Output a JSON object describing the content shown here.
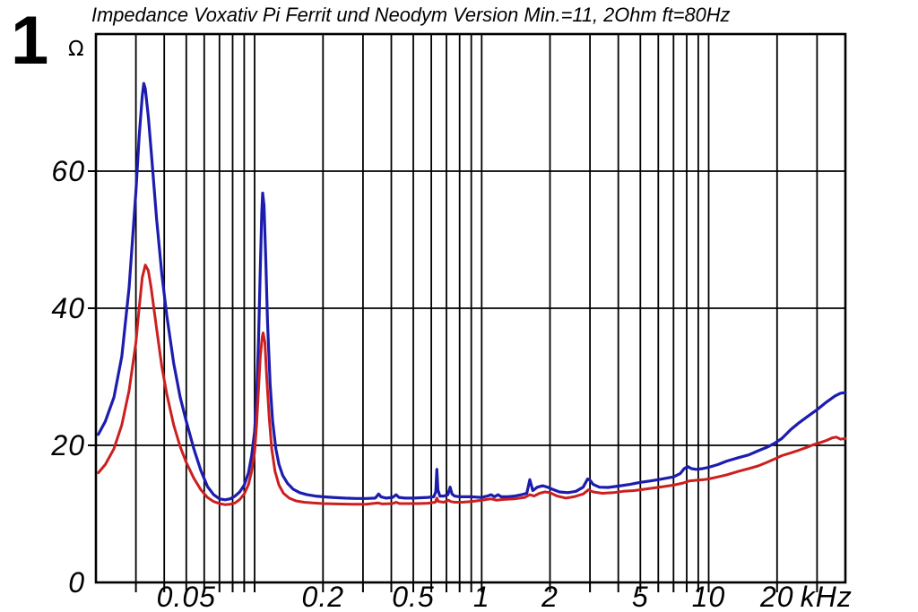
{
  "figure_number": "1",
  "chart_data": {
    "type": "line",
    "title": "Impedance Voxativ Pi Ferrit und Neodym Version Min.=11, 2Ohm ft=80Hz",
    "y_unit": "Ω",
    "x_unit": "kHz",
    "x_scale": "log",
    "x_range_khz": [
      0.02,
      40
    ],
    "y_range_ohm": [
      0,
      80
    ],
    "grid": true,
    "legend": "none",
    "x_gridlines_khz": [
      0.03,
      0.04,
      0.05,
      0.06,
      0.07,
      0.08,
      0.09,
      0.1,
      0.2,
      0.3,
      0.4,
      0.5,
      0.6,
      0.7,
      0.8,
      0.9,
      1,
      2,
      3,
      4,
      5,
      6,
      7,
      8,
      9,
      10,
      20,
      30
    ],
    "y_gridlines_ohm": [
      20,
      40,
      60
    ],
    "x_tick_labels": [
      {
        "value": 0.05,
        "label": "0.05"
      },
      {
        "value": 0.2,
        "label": "0.2"
      },
      {
        "value": 0.5,
        "label": "0.5"
      },
      {
        "value": 1,
        "label": "1"
      },
      {
        "value": 2,
        "label": "2"
      },
      {
        "value": 5,
        "label": "5"
      },
      {
        "value": 10,
        "label": "10"
      },
      {
        "value": 20,
        "label": "20"
      }
    ],
    "y_tick_labels": [
      {
        "value": 0,
        "label": "0"
      },
      {
        "value": 20,
        "label": "20"
      },
      {
        "value": 40,
        "label": "40"
      },
      {
        "value": 60,
        "label": "60"
      }
    ],
    "series": [
      {
        "name": "blue",
        "color": "#1c1cae",
        "width": 3.2,
        "points": [
          [
            0.0205,
            21.6
          ],
          [
            0.022,
            23.5
          ],
          [
            0.024,
            27
          ],
          [
            0.026,
            33
          ],
          [
            0.028,
            43
          ],
          [
            0.03,
            57
          ],
          [
            0.031,
            65
          ],
          [
            0.032,
            71
          ],
          [
            0.0325,
            72.8
          ],
          [
            0.033,
            72
          ],
          [
            0.034,
            68
          ],
          [
            0.035,
            63
          ],
          [
            0.037,
            53
          ],
          [
            0.039,
            45
          ],
          [
            0.041,
            39
          ],
          [
            0.044,
            32
          ],
          [
            0.047,
            27
          ],
          [
            0.05,
            23.5
          ],
          [
            0.054,
            19.5
          ],
          [
            0.058,
            16.3
          ],
          [
            0.062,
            14.0
          ],
          [
            0.066,
            12.8
          ],
          [
            0.07,
            12.2
          ],
          [
            0.074,
            12.05
          ],
          [
            0.078,
            12.2
          ],
          [
            0.082,
            12.6
          ],
          [
            0.086,
            13.2
          ],
          [
            0.09,
            14.2
          ],
          [
            0.094,
            16.0
          ],
          [
            0.097,
            18.5
          ],
          [
            0.1,
            22
          ],
          [
            0.102,
            27
          ],
          [
            0.104,
            35
          ],
          [
            0.106,
            46
          ],
          [
            0.1075,
            54
          ],
          [
            0.1085,
            56.8
          ],
          [
            0.11,
            55
          ],
          [
            0.112,
            47
          ],
          [
            0.114,
            38
          ],
          [
            0.117,
            29
          ],
          [
            0.12,
            23.5
          ],
          [
            0.124,
            19.5
          ],
          [
            0.128,
            17.2
          ],
          [
            0.133,
            15.6
          ],
          [
            0.14,
            14.4
          ],
          [
            0.148,
            13.6
          ],
          [
            0.158,
            13.1
          ],
          [
            0.17,
            12.8
          ],
          [
            0.185,
            12.6
          ],
          [
            0.2,
            12.5
          ],
          [
            0.22,
            12.4
          ],
          [
            0.25,
            12.3
          ],
          [
            0.28,
            12.25
          ],
          [
            0.31,
            12.25
          ],
          [
            0.34,
            12.3
          ],
          [
            0.352,
            12.9
          ],
          [
            0.36,
            12.5
          ],
          [
            0.38,
            12.3
          ],
          [
            0.405,
            12.4
          ],
          [
            0.42,
            12.8
          ],
          [
            0.432,
            12.4
          ],
          [
            0.46,
            12.3
          ],
          [
            0.5,
            12.3
          ],
          [
            0.54,
            12.35
          ],
          [
            0.58,
            12.4
          ],
          [
            0.615,
            12.5
          ],
          [
            0.628,
            13.2
          ],
          [
            0.635,
            16.5
          ],
          [
            0.642,
            13.5
          ],
          [
            0.655,
            12.6
          ],
          [
            0.68,
            12.6
          ],
          [
            0.71,
            12.8
          ],
          [
            0.726,
            13.9
          ],
          [
            0.74,
            12.9
          ],
          [
            0.76,
            12.6
          ],
          [
            0.8,
            12.5
          ],
          [
            0.85,
            12.5
          ],
          [
            0.9,
            12.5
          ],
          [
            0.95,
            12.45
          ],
          [
            1.0,
            12.4
          ],
          [
            1.06,
            12.6
          ],
          [
            1.1,
            12.8
          ],
          [
            1.14,
            12.5
          ],
          [
            1.18,
            12.8
          ],
          [
            1.22,
            12.5
          ],
          [
            1.3,
            12.5
          ],
          [
            1.4,
            12.6
          ],
          [
            1.5,
            12.8
          ],
          [
            1.58,
            13.0
          ],
          [
            1.63,
            15.0
          ],
          [
            1.68,
            13.4
          ],
          [
            1.76,
            13.9
          ],
          [
            1.86,
            14.1
          ],
          [
            1.95,
            13.9
          ],
          [
            2.05,
            13.6
          ],
          [
            2.2,
            13.2
          ],
          [
            2.4,
            13.1
          ],
          [
            2.6,
            13.3
          ],
          [
            2.8,
            13.9
          ],
          [
            2.93,
            15.1
          ],
          [
            3.0,
            14.9
          ],
          [
            3.1,
            14.3
          ],
          [
            3.3,
            13.9
          ],
          [
            3.6,
            13.85
          ],
          [
            4.0,
            14.05
          ],
          [
            4.5,
            14.3
          ],
          [
            5.0,
            14.6
          ],
          [
            5.5,
            14.8
          ],
          [
            6.0,
            15.0
          ],
          [
            6.5,
            15.2
          ],
          [
            7.0,
            15.4
          ],
          [
            7.5,
            15.9
          ],
          [
            7.8,
            16.6
          ],
          [
            8.1,
            16.9
          ],
          [
            8.4,
            16.6
          ],
          [
            8.8,
            16.5
          ],
          [
            9.4,
            16.6
          ],
          [
            10.0,
            16.8
          ],
          [
            11.0,
            17.2
          ],
          [
            12.0,
            17.7
          ],
          [
            13.5,
            18.2
          ],
          [
            15.0,
            18.6
          ],
          [
            16.5,
            19.2
          ],
          [
            18.0,
            19.7
          ],
          [
            19.5,
            20.3
          ],
          [
            21.0,
            21.0
          ],
          [
            23.0,
            22.3
          ],
          [
            25.0,
            23.3
          ],
          [
            27.0,
            24.1
          ],
          [
            30.0,
            25.2
          ],
          [
            33.0,
            26.3
          ],
          [
            36.0,
            27.2
          ],
          [
            38.0,
            27.6
          ],
          [
            40.0,
            27.7
          ]
        ]
      },
      {
        "name": "red",
        "color": "#cc1f1f",
        "width": 3.0,
        "points": [
          [
            0.0205,
            16.0
          ],
          [
            0.022,
            17.2
          ],
          [
            0.024,
            19.5
          ],
          [
            0.026,
            23
          ],
          [
            0.028,
            28
          ],
          [
            0.03,
            35
          ],
          [
            0.031,
            40
          ],
          [
            0.032,
            44.5
          ],
          [
            0.033,
            46.3
          ],
          [
            0.034,
            45.5
          ],
          [
            0.035,
            43
          ],
          [
            0.037,
            37
          ],
          [
            0.039,
            31.5
          ],
          [
            0.041,
            27.5
          ],
          [
            0.044,
            23
          ],
          [
            0.047,
            19.8
          ],
          [
            0.05,
            17.5
          ],
          [
            0.054,
            15.2
          ],
          [
            0.058,
            13.5
          ],
          [
            0.062,
            12.4
          ],
          [
            0.066,
            11.8
          ],
          [
            0.07,
            11.5
          ],
          [
            0.074,
            11.35
          ],
          [
            0.078,
            11.4
          ],
          [
            0.082,
            11.6
          ],
          [
            0.086,
            12.1
          ],
          [
            0.09,
            12.9
          ],
          [
            0.094,
            14.3
          ],
          [
            0.097,
            16.2
          ],
          [
            0.1,
            19
          ],
          [
            0.102,
            23
          ],
          [
            0.104,
            28
          ],
          [
            0.106,
            33
          ],
          [
            0.108,
            35.8
          ],
          [
            0.109,
            36.4
          ],
          [
            0.111,
            35
          ],
          [
            0.113,
            30
          ],
          [
            0.116,
            24
          ],
          [
            0.119,
            19.5
          ],
          [
            0.123,
            16.2
          ],
          [
            0.128,
            14.2
          ],
          [
            0.134,
            13.0
          ],
          [
            0.142,
            12.3
          ],
          [
            0.152,
            11.9
          ],
          [
            0.165,
            11.7
          ],
          [
            0.18,
            11.6
          ],
          [
            0.2,
            11.5
          ],
          [
            0.23,
            11.45
          ],
          [
            0.27,
            11.4
          ],
          [
            0.31,
            11.4
          ],
          [
            0.35,
            11.6
          ],
          [
            0.365,
            11.45
          ],
          [
            0.405,
            11.5
          ],
          [
            0.42,
            11.7
          ],
          [
            0.435,
            11.5
          ],
          [
            0.48,
            11.5
          ],
          [
            0.53,
            11.5
          ],
          [
            0.58,
            11.55
          ],
          [
            0.625,
            11.7
          ],
          [
            0.635,
            12.3
          ],
          [
            0.645,
            11.8
          ],
          [
            0.68,
            11.7
          ],
          [
            0.715,
            12.0
          ],
          [
            0.73,
            11.8
          ],
          [
            0.76,
            11.7
          ],
          [
            0.82,
            11.7
          ],
          [
            0.9,
            11.8
          ],
          [
            1.0,
            12.0
          ],
          [
            1.1,
            12.2
          ],
          [
            1.16,
            12.0
          ],
          [
            1.25,
            12.1
          ],
          [
            1.4,
            12.2
          ],
          [
            1.55,
            12.4
          ],
          [
            1.63,
            12.8
          ],
          [
            1.7,
            12.6
          ],
          [
            1.8,
            13.0
          ],
          [
            1.9,
            13.2
          ],
          [
            2.0,
            13.1
          ],
          [
            2.15,
            12.6
          ],
          [
            2.35,
            12.3
          ],
          [
            2.55,
            12.5
          ],
          [
            2.8,
            12.9
          ],
          [
            2.95,
            13.5
          ],
          [
            3.1,
            13.2
          ],
          [
            3.4,
            13.0
          ],
          [
            3.8,
            13.1
          ],
          [
            4.2,
            13.3
          ],
          [
            4.7,
            13.4
          ],
          [
            5.2,
            13.6
          ],
          [
            5.8,
            13.8
          ],
          [
            6.4,
            14.0
          ],
          [
            7.0,
            14.2
          ],
          [
            7.7,
            14.5
          ],
          [
            8.2,
            14.8
          ],
          [
            8.8,
            14.9
          ],
          [
            9.5,
            15.0
          ],
          [
            10.0,
            15.1
          ],
          [
            11.0,
            15.4
          ],
          [
            12.0,
            15.7
          ],
          [
            13.5,
            16.2
          ],
          [
            15.0,
            16.6
          ],
          [
            16.5,
            17.0
          ],
          [
            18.0,
            17.5
          ],
          [
            19.5,
            18.0
          ],
          [
            21.0,
            18.5
          ],
          [
            23.0,
            18.9
          ],
          [
            25.0,
            19.3
          ],
          [
            27.0,
            19.7
          ],
          [
            29.0,
            20.1
          ],
          [
            31.0,
            20.4
          ],
          [
            33.0,
            20.7
          ],
          [
            35.0,
            21.1
          ],
          [
            36.5,
            21.2
          ],
          [
            38.0,
            20.9
          ],
          [
            40.0,
            21.0
          ]
        ]
      }
    ]
  }
}
